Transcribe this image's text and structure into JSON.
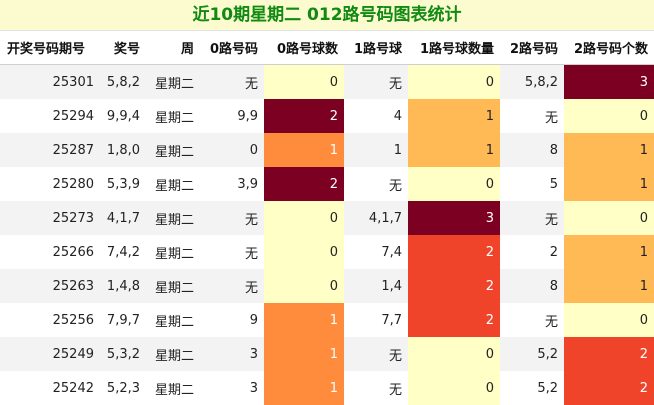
{
  "title": "近10期星期二 012路号码图表统计",
  "headers": [
    "开奖号码期号",
    "奖号",
    "周",
    "0路号码",
    "0路号球数",
    "1路号球",
    "1路号球数量",
    "2路号码",
    "2路号码个数"
  ],
  "rows": [
    {
      "period": "25301",
      "number": "5,8,2",
      "week": "星期二",
      "r0": "无",
      "r0c": "0",
      "r1": "无",
      "r1c": "0",
      "r2": "5,8,2",
      "r2c": "3"
    },
    {
      "period": "25294",
      "number": "9,9,4",
      "week": "星期二",
      "r0": "9,9",
      "r0c": "2",
      "r1": "4",
      "r1c": "1",
      "r2": "无",
      "r2c": "0"
    },
    {
      "period": "25287",
      "number": "1,8,0",
      "week": "星期二",
      "r0": "0",
      "r0c": "1",
      "r1": "1",
      "r1c": "1",
      "r2": "8",
      "r2c": "1"
    },
    {
      "period": "25280",
      "number": "5,3,9",
      "week": "星期二",
      "r0": "3,9",
      "r0c": "2",
      "r1": "无",
      "r1c": "0",
      "r2": "5",
      "r2c": "1"
    },
    {
      "period": "25273",
      "number": "4,1,7",
      "week": "星期二",
      "r0": "无",
      "r0c": "0",
      "r1": "4,1,7",
      "r1c": "3",
      "r2": "无",
      "r2c": "0"
    },
    {
      "period": "25266",
      "number": "7,4,2",
      "week": "星期二",
      "r0": "无",
      "r0c": "0",
      "r1": "7,4",
      "r1c": "2",
      "r2": "2",
      "r2c": "1"
    },
    {
      "period": "25263",
      "number": "1,4,8",
      "week": "星期二",
      "r0": "无",
      "r0c": "0",
      "r1": "1,4",
      "r1c": "2",
      "r2": "8",
      "r2c": "1"
    },
    {
      "period": "25256",
      "number": "7,9,7",
      "week": "星期二",
      "r0": "9",
      "r0c": "1",
      "r1": "7,7",
      "r1c": "2",
      "r2": "无",
      "r2c": "0"
    },
    {
      "period": "25249",
      "number": "5,3,2",
      "week": "星期二",
      "r0": "3",
      "r0c": "1",
      "r1": "无",
      "r1c": "0",
      "r2": "5,2",
      "r2c": "2"
    },
    {
      "period": "25242",
      "number": "5,2,3",
      "week": "星期二",
      "r0": "3",
      "r0c": "1",
      "r1": "无",
      "r1c": "0",
      "r2": "5,2",
      "r2c": "2"
    }
  ]
}
